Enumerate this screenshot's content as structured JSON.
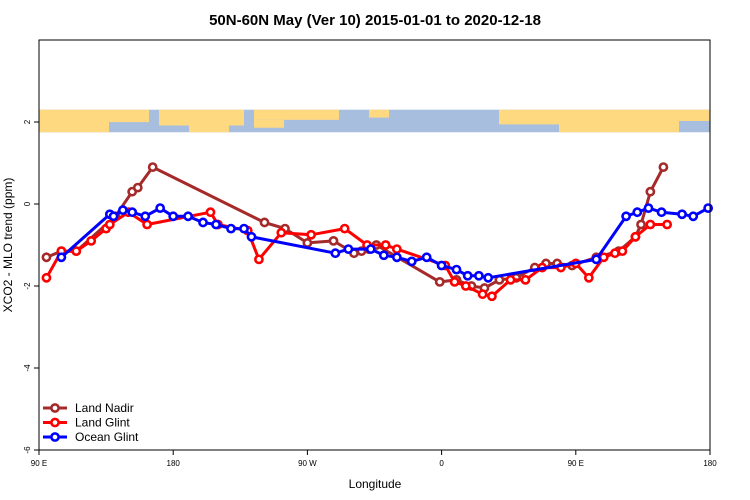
{
  "chart_data": {
    "type": "line",
    "title": "50N-60N May (Ver 10)   2015-01-01 to 2020-12-18",
    "xlabel": "Longitude",
    "ylabel": "XCO2 - MLO trend (ppm)",
    "xlim": [
      90,
      450
    ],
    "ylim": [
      -6,
      4
    ],
    "xticks": [
      {
        "value": 90,
        "label": "90 E"
      },
      {
        "value": 162,
        "label": "180"
      },
      {
        "value": 234,
        "label": "90 W"
      },
      {
        "value": 306,
        "label": "0"
      },
      {
        "value": 378,
        "label": "90 E"
      },
      {
        "value": 450,
        "label": "180"
      }
    ],
    "yticks": [
      {
        "value": -6,
        "label": "-6"
      },
      {
        "value": -4,
        "label": "-4"
      },
      {
        "value": -2,
        "label": "-2"
      },
      {
        "value": 0,
        "label": "0"
      },
      {
        "value": 2,
        "label": "2"
      }
    ],
    "legend_position": "bottom-left",
    "map_strip": {
      "y_top": 2.3,
      "y_bottom": 1.75,
      "ocean_color": "#a8bedf",
      "land_color": "#ffd980"
    },
    "series": [
      {
        "name": "Land Nadir",
        "color": "#a52a2a",
        "x": [
          94,
          102,
          110,
          131,
          140,
          143,
          151,
          211,
          222,
          234,
          248,
          259,
          263,
          267,
          271,
          305,
          314,
          322,
          329,
          337,
          346,
          356,
          362,
          368,
          376,
          389,
          401,
          410,
          413,
          418,
          425
        ],
        "y": [
          -1.3,
          -1.15,
          -1.15,
          -0.3,
          0.3,
          0.4,
          0.9,
          -0.45,
          -0.6,
          -0.95,
          -0.9,
          -1.2,
          -1.15,
          -1.1,
          -1.0,
          -1.9,
          -1.85,
          -2.0,
          -2.05,
          -1.85,
          -1.8,
          -1.55,
          -1.45,
          -1.45,
          -1.5,
          -1.3,
          -1.15,
          -0.8,
          -0.5,
          0.3,
          0.9
        ]
      },
      {
        "name": "Land Glint",
        "color": "#ff0000",
        "x": [
          94,
          102,
          110,
          118,
          126,
          128,
          138,
          148,
          182,
          186,
          202,
          208,
          220,
          236,
          254,
          266,
          276,
          282,
          308,
          313,
          319,
          328,
          333,
          343,
          351,
          360,
          370,
          378,
          385,
          393,
          399,
          403,
          410,
          418,
          427
        ],
        "y": [
          -1.8,
          -1.15,
          -1.15,
          -0.9,
          -0.6,
          -0.5,
          -0.2,
          -0.5,
          -0.2,
          -0.5,
          -0.65,
          -1.35,
          -0.7,
          -0.75,
          -0.6,
          -1.0,
          -1.0,
          -1.1,
          -1.5,
          -1.9,
          -2.0,
          -2.2,
          -2.25,
          -1.85,
          -1.85,
          -1.55,
          -1.55,
          -1.45,
          -1.8,
          -1.3,
          -1.2,
          -1.15,
          -0.8,
          -0.5,
          -0.5
        ]
      },
      {
        "name": "Ocean Glint",
        "color": "#0000ff",
        "x": [
          102,
          128,
          130,
          135,
          140,
          147,
          155,
          162,
          170,
          178,
          185,
          193,
          200,
          204,
          249,
          256,
          268,
          275,
          282,
          290,
          298,
          306,
          314,
          320,
          326,
          331,
          389,
          405,
          411,
          417,
          424,
          435,
          441,
          449
        ],
        "y": [
          -1.3,
          -0.25,
          -0.3,
          -0.15,
          -0.2,
          -0.3,
          -0.1,
          -0.3,
          -0.3,
          -0.45,
          -0.5,
          -0.6,
          -0.6,
          -0.8,
          -1.2,
          -1.1,
          -1.1,
          -1.25,
          -1.3,
          -1.4,
          -1.3,
          -1.5,
          -1.6,
          -1.75,
          -1.75,
          -1.8,
          -1.35,
          -0.3,
          -0.2,
          -0.1,
          -0.2,
          -0.25,
          -0.3,
          -0.1
        ]
      }
    ]
  }
}
